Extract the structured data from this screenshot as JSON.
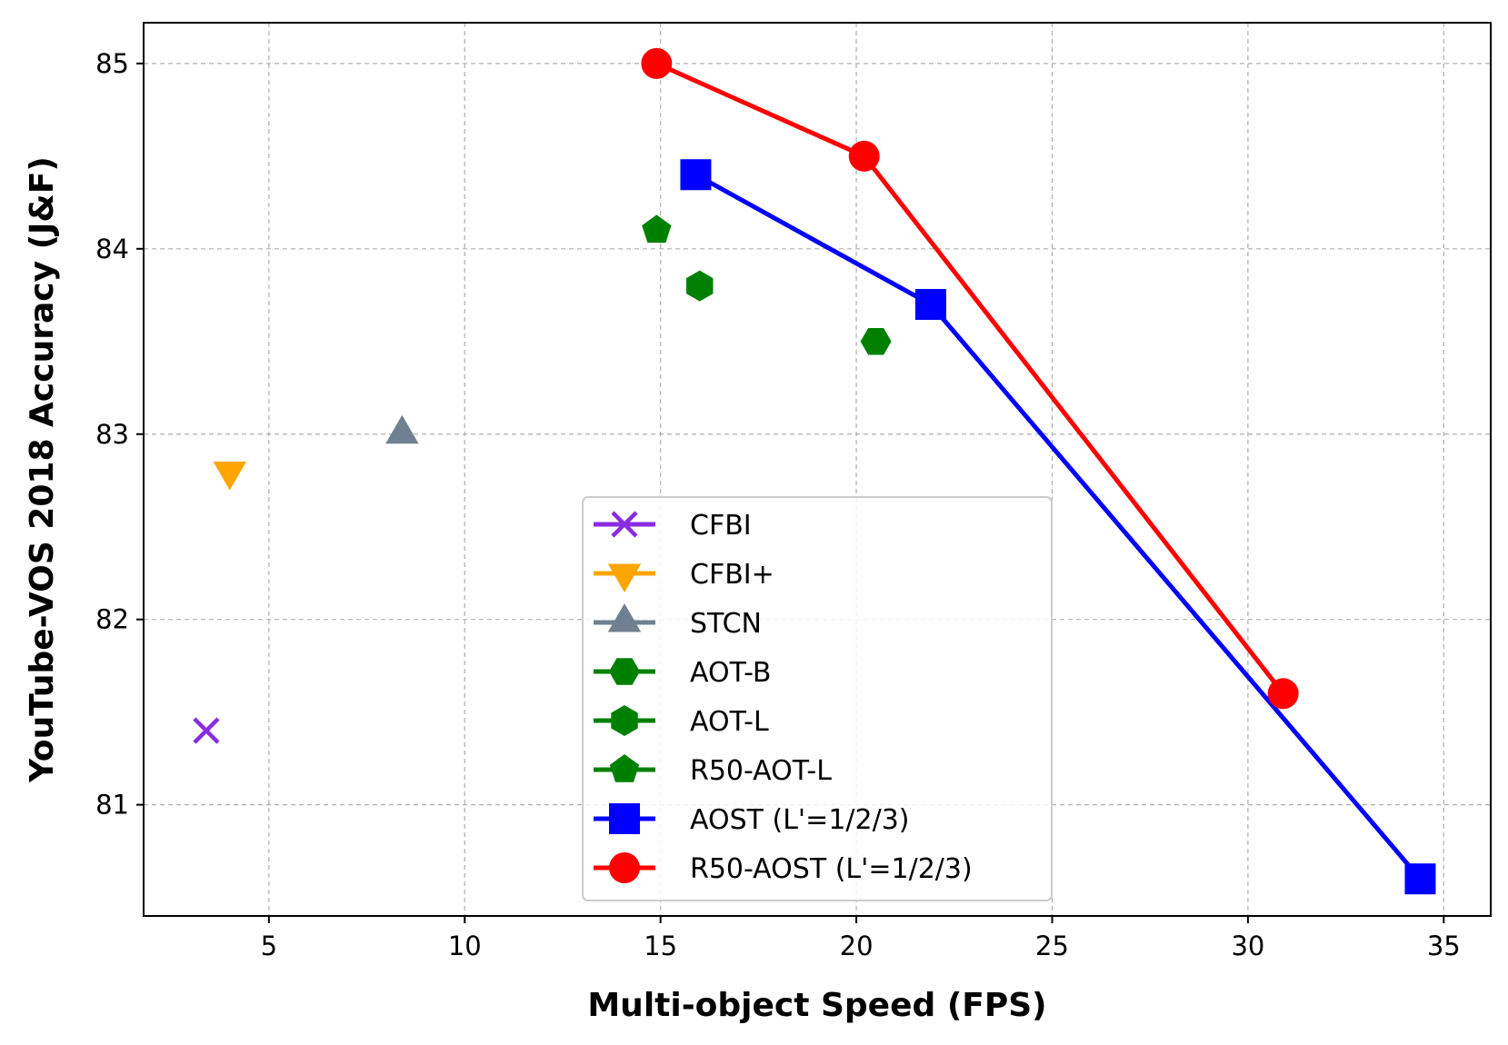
{
  "chart_data": {
    "type": "scatter",
    "title": "",
    "xlabel": "Multi-object Speed (FPS)",
    "ylabel": "YouTube-VOS 2018 Accuracy (J&F)",
    "xlim": [
      1.8,
      36.2
    ],
    "ylim": [
      80.4,
      85.22
    ],
    "xticks": [
      5,
      10,
      15,
      20,
      25,
      30,
      35
    ],
    "yticks": [
      81,
      82,
      83,
      84,
      85
    ],
    "grid": true,
    "legend_position": "lower-center",
    "series": [
      {
        "name": "CFBI",
        "marker": "x",
        "color": "#8a2be2",
        "line": false,
        "points": [
          {
            "x": 3.4,
            "y": 81.4
          }
        ]
      },
      {
        "name": "CFBI+",
        "marker": "triangle-down",
        "color": "#ffa500",
        "line": false,
        "points": [
          {
            "x": 4.0,
            "y": 82.8
          }
        ]
      },
      {
        "name": "STCN",
        "marker": "triangle-up",
        "color": "#708090",
        "line": false,
        "points": [
          {
            "x": 8.4,
            "y": 83.0
          }
        ]
      },
      {
        "name": "AOT-B",
        "marker": "hexagon-flat",
        "color": "#008000",
        "line": false,
        "points": [
          {
            "x": 20.5,
            "y": 83.5
          }
        ]
      },
      {
        "name": "AOT-L",
        "marker": "hexagon",
        "color": "#008000",
        "line": false,
        "points": [
          {
            "x": 16.0,
            "y": 83.8
          }
        ]
      },
      {
        "name": "R50-AOT-L",
        "marker": "pentagon",
        "color": "#008000",
        "line": false,
        "points": [
          {
            "x": 14.9,
            "y": 84.1
          }
        ]
      },
      {
        "name": "AOST (L'=1/2/3)",
        "marker": "square",
        "color": "#0000ff",
        "line": true,
        "points": [
          {
            "x": 15.9,
            "y": 84.4
          },
          {
            "x": 21.9,
            "y": 83.7
          },
          {
            "x": 34.4,
            "y": 80.6
          }
        ]
      },
      {
        "name": "R50-AOST (L'=1/2/3)",
        "marker": "circle",
        "color": "#ff0000",
        "line": true,
        "points": [
          {
            "x": 14.9,
            "y": 85.0
          },
          {
            "x": 20.2,
            "y": 84.5
          },
          {
            "x": 30.9,
            "y": 81.6
          }
        ]
      }
    ]
  }
}
